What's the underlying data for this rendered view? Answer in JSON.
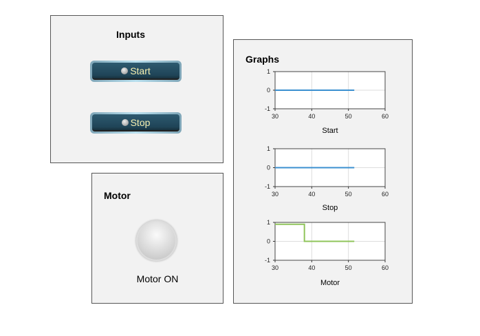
{
  "inputs": {
    "title": "Inputs",
    "buttons": [
      {
        "label": "Start"
      },
      {
        "label": "Stop"
      }
    ]
  },
  "motor": {
    "title": "Motor",
    "lamp_label": "Motor ON",
    "lamp_on": false
  },
  "graphs": {
    "title": "Graphs"
  },
  "chart_data": [
    {
      "type": "line",
      "xlabel": "Start",
      "xlim": [
        30,
        60
      ],
      "ylim": [
        -1,
        1
      ],
      "xticks": [
        30,
        40,
        50,
        60
      ],
      "yticks": [
        1,
        0,
        -1
      ],
      "grid": true,
      "color": "#3a8fd0",
      "x": [
        30,
        51.6
      ],
      "y": [
        0,
        0
      ]
    },
    {
      "type": "line",
      "xlabel": "Stop",
      "xlim": [
        30,
        60
      ],
      "ylim": [
        -1,
        1
      ],
      "xticks": [
        30,
        40,
        50,
        60
      ],
      "yticks": [
        1,
        0,
        -1
      ],
      "grid": true,
      "color": "#3a8fd0",
      "x": [
        30,
        51.6
      ],
      "y": [
        0,
        0
      ]
    },
    {
      "type": "line",
      "xlabel": "Motor",
      "xlim": [
        30,
        60
      ],
      "ylim": [
        -1,
        1
      ],
      "xticks": [
        30,
        40,
        50,
        60
      ],
      "yticks": [
        1,
        0,
        -1
      ],
      "grid": true,
      "color": "#8fc45a",
      "x": [
        30,
        38,
        38,
        51.6
      ],
      "y": [
        0.9,
        0.9,
        0,
        0
      ]
    }
  ]
}
